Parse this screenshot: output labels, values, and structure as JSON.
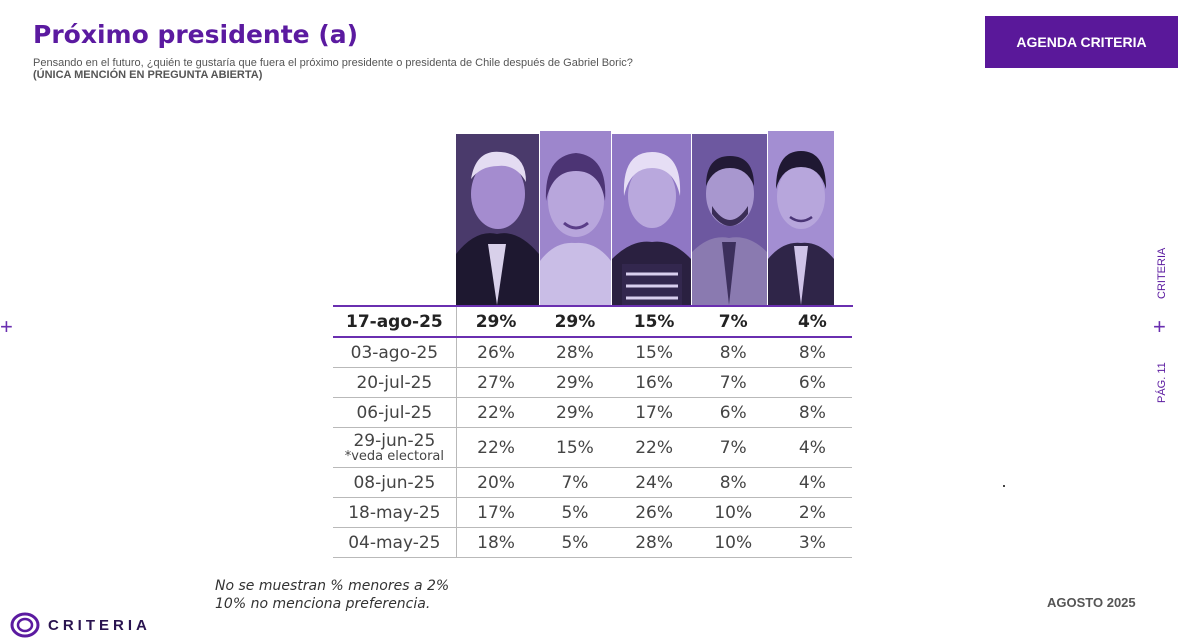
{
  "header": {
    "title": "Próximo presidente (a)",
    "question": "Pensando en el futuro, ¿quién te gustaría que fuera el próximo presidente o presidenta de Chile después de Gabriel Boric?",
    "note": "(ÚNICA MENCIÓN EN PREGUNTA ABIERTA)"
  },
  "agenda_button": "AGENDA CRITERIA",
  "table": {
    "rows": [
      {
        "date": "17-ago-25",
        "sub": "",
        "values": [
          "29%",
          "29%",
          "15%",
          "7%",
          "4%"
        ]
      },
      {
        "date": "03-ago-25",
        "sub": "",
        "values": [
          "26%",
          "28%",
          "15%",
          "8%",
          "8%"
        ]
      },
      {
        "date": "20-jul-25",
        "sub": "",
        "values": [
          "27%",
          "29%",
          "16%",
          "7%",
          "6%"
        ]
      },
      {
        "date": "06-jul-25",
        "sub": "",
        "values": [
          "22%",
          "29%",
          "17%",
          "6%",
          "8%"
        ]
      },
      {
        "date": "29-jun-25",
        "sub": "*veda electoral",
        "values": [
          "22%",
          "15%",
          "22%",
          "7%",
          "4%"
        ]
      },
      {
        "date": "08-jun-25",
        "sub": "",
        "values": [
          "20%",
          "7%",
          "24%",
          "8%",
          "4%"
        ]
      },
      {
        "date": "18-may-25",
        "sub": "",
        "values": [
          "17%",
          "5%",
          "26%",
          "10%",
          "2%"
        ]
      },
      {
        "date": "04-may-25",
        "sub": "",
        "values": [
          "18%",
          "5%",
          "28%",
          "10%",
          "3%"
        ]
      }
    ]
  },
  "footnotes": {
    "line1": "No se muestran % menores a 2%",
    "line2": "10% no menciona preferencia."
  },
  "date_label": "AGOSTO 2025",
  "logo_text": "CRITERIA",
  "side": {
    "brand": "CRITERIA",
    "page": "PÁG. 11"
  },
  "colors": {
    "accent": "#5b1aa0",
    "button": "#5a189a",
    "photo_tint": "#8a6cc4"
  }
}
